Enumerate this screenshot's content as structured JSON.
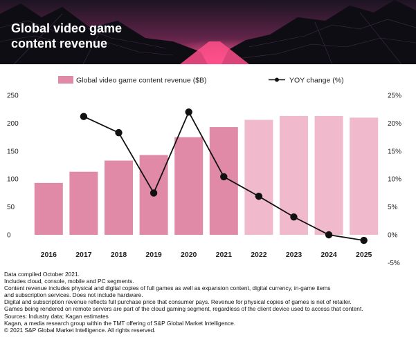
{
  "header": {
    "title_line1": "Global video game",
    "title_line2": "content revenue",
    "colors": {
      "sky_top": "#24182c",
      "sky_mid": "#7a2a55",
      "glow": "#ff3d7f",
      "mountain": "#0f0d14"
    }
  },
  "chart_data": {
    "type": "bar",
    "title": "Global video game content revenue",
    "categories": [
      "2016",
      "2017",
      "2018",
      "2019",
      "2020",
      "2021",
      "2022",
      "2023",
      "2024",
      "2025"
    ],
    "series": [
      {
        "name": "Global video game content revenue ($B)",
        "type": "bar",
        "axis": "left",
        "values": [
          93,
          113,
          133,
          143,
          175,
          193,
          206,
          213,
          213,
          210
        ],
        "colors": [
          "#e08aa8",
          "#e08aa8",
          "#e08aa8",
          "#e08aa8",
          "#e08aa8",
          "#e08aa8",
          "#f0b9cc",
          "#f0b9cc",
          "#f0b9cc",
          "#f0b9cc"
        ]
      },
      {
        "name": "YOY change (%)",
        "type": "line",
        "axis": "right",
        "values": [
          null,
          21.2,
          18.3,
          7.5,
          22.0,
          10.4,
          6.9,
          3.2,
          0.0,
          -1.0
        ],
        "color": "#111111"
      }
    ],
    "y_left": {
      "ticks": [
        "0",
        "50",
        "100",
        "150",
        "200",
        "250"
      ],
      "ylim": [
        0,
        250
      ]
    },
    "y_right": {
      "ticks": [
        "-5%",
        "0%",
        "5%",
        "10%",
        "15%",
        "20%",
        "25%"
      ],
      "ylim": [
        -5,
        25
      ]
    },
    "legend": {
      "position": "top-center"
    }
  },
  "notes": [
    "Data compiled October 2021.",
    "Includes cloud, console, mobile and PC segments.",
    "Content revenue includes physical and digital copies of full games as well as expansion content, digital currency, in-game items",
    "and subscription services. Does not include hardware.",
    "Digital and subscription revenue reflects full purchase price that consumer pays. Revenue for physical copies of games is net of retailer.",
    "Games being rendered on remote servers are part of the cloud gaming segment, regardless of the client device used to access that content.",
    "Sources: Industry data; Kagan estimates",
    "Kagan, a media research group within the TMT offering of S&P Global Market Intelligence.",
    "© 2021 S&P Global Market Intelligence. All rights reserved."
  ]
}
